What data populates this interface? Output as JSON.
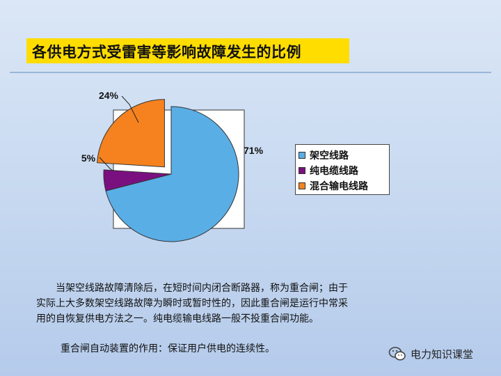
{
  "slide": {
    "title": "各供电方式受雷害等影响故障发生的比例",
    "paragraph_lines": [
      "当架空线路故障清除后，在短时间内闭合断路器，称为重合闸；由于",
      "实际上大多数架空线路故障为瞬时或暂时性的，因此重合闸是运行中常采",
      "用的自恢复供电方法之一。纯电缆输电线路一般不投重合闸功能。"
    ],
    "note": "重合闸自动装置的作用：保证用户供电的连续性。",
    "watermark": "电力知识课堂",
    "watermark_icon": "wechat-icon"
  },
  "colors": {
    "title_background": "#ffdd00",
    "overhead": "#5aaee6",
    "cable": "#7a1080",
    "mixed": "#f5821f"
  },
  "chart_data": {
    "type": "pie",
    "exploded": true,
    "slices": [
      {
        "name": "架空线路",
        "value": 71,
        "label": "71%",
        "color": "#5aaee6"
      },
      {
        "name": "纯电缆线路",
        "value": 5,
        "label": "5%",
        "color": "#7a1080"
      },
      {
        "name": "混合输电线路",
        "value": 24,
        "label": "24%",
        "color": "#f5821f"
      }
    ],
    "legend": [
      "架空线路",
      "纯电缆线路",
      "混合输电线路"
    ],
    "legend_position": "right"
  }
}
